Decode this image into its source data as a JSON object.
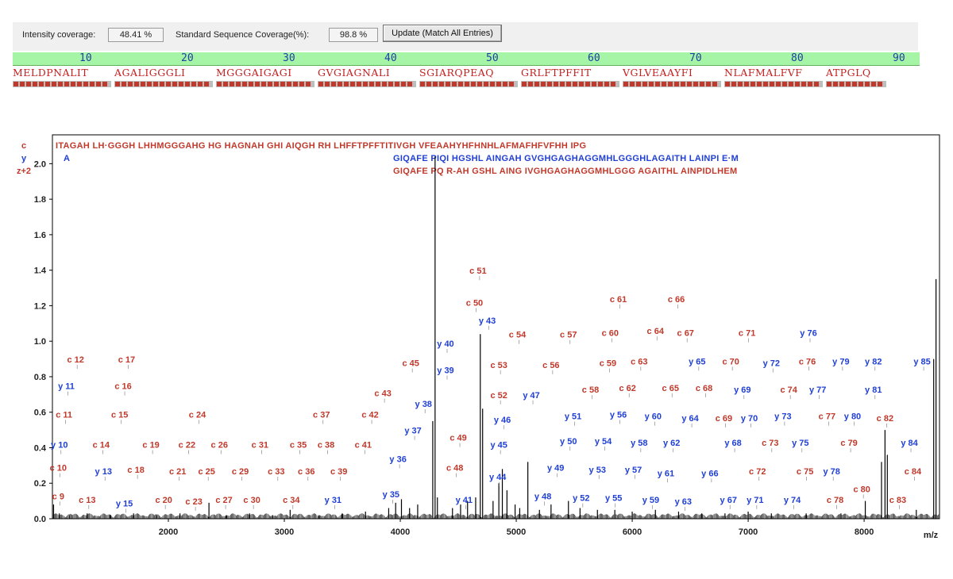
{
  "toolbar": {
    "intensity_label": "Intensity coverage:",
    "intensity_value": "48.41 %",
    "seqcov_label": "Standard Sequence Coverage(%):",
    "seqcov_value": "98.8 %",
    "update_button": "Update (Match All Entries)"
  },
  "sequence": {
    "ruler": [
      "10",
      "20",
      "30",
      "40",
      "50",
      "60",
      "70",
      "80",
      "90"
    ],
    "blocks": [
      "MELDPNALIT",
      "AGALIGGGLI",
      "MGGGAIGAGI",
      "GVGIAGNALI",
      "SGIARQPEAQ",
      "GRLFTPFFIT",
      "VGLVEAAYFI",
      "NLAFMALFVF",
      "ATPGLQ"
    ]
  },
  "colors": {
    "c_ion": "#c0392b",
    "y_ion": "#1f3fd6",
    "spectrum": "#000000",
    "ruler_bg": "#a6f5a6"
  },
  "chart_data": {
    "type": "mass_spectrum",
    "xlabel": "m/z",
    "xlim": [
      1000,
      8650
    ],
    "ylim": [
      0,
      2.1
    ],
    "xticks": [
      "2000",
      "3000",
      "4000",
      "5000",
      "6000",
      "7000",
      "8000"
    ],
    "yticks": [
      "0.0",
      "0.2",
      "0.4",
      "0.6",
      "0.8",
      "1.0",
      "1.2",
      "1.4",
      "1.6",
      "1.8",
      "2.0"
    ],
    "series_labels": [
      "c",
      "y",
      "z+2"
    ],
    "fragment_rows": {
      "c": "ITAGAH LH·GGGH LHHMGGGAHG HG HAGNAH GHI AIQGH RH LHFFTPFFTITIVGH VFEAAHYHFHNHLAFMAFHFVFHH IPG",
      "y": "A",
      "y_line2": "GIQAFE PIQI HGSHL AINGAH GVGHGAGHAGGMHLGGGHLAGAITH LAINPI E·M",
      "z2": "GIQAFE PQ R-AH GSHL AING IVGHGAGHAGGMHLGGG AGAITHL AINPIDLHEM"
    },
    "peaks": [
      [
        1010,
        0.08
      ],
      [
        1060,
        0.03
      ],
      [
        1150,
        0.02
      ],
      [
        1300,
        0.03
      ],
      [
        1500,
        0.02
      ],
      [
        1700,
        0.03
      ],
      [
        1900,
        0.02
      ],
      [
        2100,
        0.03
      ],
      [
        2350,
        0.09
      ],
      [
        2500,
        0.02
      ],
      [
        2700,
        0.03
      ],
      [
        2900,
        0.02
      ],
      [
        3050,
        0.05
      ],
      [
        3300,
        0.02
      ],
      [
        3500,
        0.03
      ],
      [
        3700,
        0.04
      ],
      [
        3900,
        0.06
      ],
      [
        3960,
        0.09
      ],
      [
        4010,
        0.11
      ],
      [
        4080,
        0.06
      ],
      [
        4150,
        0.08
      ],
      [
        4280,
        0.55
      ],
      [
        4300,
        2.04
      ],
      [
        4320,
        0.12
      ],
      [
        4450,
        0.06
      ],
      [
        4520,
        0.08
      ],
      [
        4580,
        0.1
      ],
      [
        4650,
        0.12
      ],
      [
        4690,
        1.04
      ],
      [
        4710,
        0.62
      ],
      [
        4800,
        0.1
      ],
      [
        4850,
        0.2
      ],
      [
        4880,
        0.28
      ],
      [
        4920,
        0.16
      ],
      [
        4990,
        0.08
      ],
      [
        5030,
        0.06
      ],
      [
        5100,
        0.32
      ],
      [
        5200,
        0.05
      ],
      [
        5300,
        0.08
      ],
      [
        5450,
        0.1
      ],
      [
        5550,
        0.06
      ],
      [
        5700,
        0.05
      ],
      [
        5850,
        0.05
      ],
      [
        6000,
        0.04
      ],
      [
        6200,
        0.05
      ],
      [
        6400,
        0.04
      ],
      [
        6600,
        0.03
      ],
      [
        6800,
        0.03
      ],
      [
        7000,
        0.04
      ],
      [
        7200,
        0.03
      ],
      [
        7500,
        0.03
      ],
      [
        7800,
        0.03
      ],
      [
        8010,
        0.1
      ],
      [
        8150,
        0.32
      ],
      [
        8180,
        0.5
      ],
      [
        8200,
        0.36
      ],
      [
        8450,
        0.05
      ],
      [
        8600,
        0.9
      ],
      [
        8620,
        1.35
      ]
    ],
    "annotations": [
      {
        "label": "c 9",
        "type": "c",
        "x": 1050,
        "y": 0.11
      },
      {
        "label": "c 10",
        "type": "c",
        "x": 1050,
        "y": 0.27
      },
      {
        "label": "c 11",
        "type": "c",
        "x": 1100,
        "y": 0.57
      },
      {
        "label": "c 12",
        "type": "c",
        "x": 1200,
        "y": 0.88
      },
      {
        "label": "y 10",
        "type": "y",
        "x": 1060,
        "y": 0.4
      },
      {
        "label": "y 11",
        "type": "y",
        "x": 1120,
        "y": 0.73
      },
      {
        "label": "c 13",
        "type": "c",
        "x": 1300,
        "y": 0.09
      },
      {
        "label": "c 14",
        "type": "c",
        "x": 1420,
        "y": 0.4
      },
      {
        "label": "y 13",
        "type": "y",
        "x": 1440,
        "y": 0.25
      },
      {
        "label": "c 15",
        "type": "c",
        "x": 1580,
        "y": 0.57
      },
      {
        "label": "c 16",
        "type": "c",
        "x": 1610,
        "y": 0.73
      },
      {
        "label": "c 17",
        "type": "c",
        "x": 1640,
        "y": 0.88
      },
      {
        "label": "y 15",
        "type": "y",
        "x": 1620,
        "y": 0.07
      },
      {
        "label": "c 18",
        "type": "c",
        "x": 1720,
        "y": 0.26
      },
      {
        "label": "c 19",
        "type": "c",
        "x": 1850,
        "y": 0.4
      },
      {
        "label": "c 20",
        "type": "c",
        "x": 1960,
        "y": 0.09
      },
      {
        "label": "c 21",
        "type": "c",
        "x": 2080,
        "y": 0.25
      },
      {
        "label": "c 22",
        "type": "c",
        "x": 2160,
        "y": 0.4
      },
      {
        "label": "c 23",
        "type": "c",
        "x": 2220,
        "y": 0.08
      },
      {
        "label": "c 24",
        "type": "c",
        "x": 2250,
        "y": 0.57
      },
      {
        "label": "c 25",
        "type": "c",
        "x": 2330,
        "y": 0.25
      },
      {
        "label": "c 26",
        "type": "c",
        "x": 2440,
        "y": 0.4
      },
      {
        "label": "c 27",
        "type": "c",
        "x": 2480,
        "y": 0.09
      },
      {
        "label": "c 29",
        "type": "c",
        "x": 2620,
        "y": 0.25
      },
      {
        "label": "c 30",
        "type": "c",
        "x": 2720,
        "y": 0.09
      },
      {
        "label": "c 31",
        "type": "c",
        "x": 2790,
        "y": 0.4
      },
      {
        "label": "c 33",
        "type": "c",
        "x": 2930,
        "y": 0.25
      },
      {
        "label": "c 34",
        "type": "c",
        "x": 3060,
        "y": 0.09
      },
      {
        "label": "c 35",
        "type": "c",
        "x": 3120,
        "y": 0.4
      },
      {
        "label": "c 36",
        "type": "c",
        "x": 3190,
        "y": 0.25
      },
      {
        "label": "c 37",
        "type": "c",
        "x": 3320,
        "y": 0.57
      },
      {
        "label": "c 38",
        "type": "c",
        "x": 3360,
        "y": 0.4
      },
      {
        "label": "c 39",
        "type": "c",
        "x": 3470,
        "y": 0.25
      },
      {
        "label": "y 31",
        "type": "y",
        "x": 3420,
        "y": 0.09
      },
      {
        "label": "c 41",
        "type": "c",
        "x": 3680,
        "y": 0.4
      },
      {
        "label": "c 42",
        "type": "c",
        "x": 3740,
        "y": 0.57
      },
      {
        "label": "c 43",
        "type": "c",
        "x": 3850,
        "y": 0.69
      },
      {
        "label": "c 45",
        "type": "c",
        "x": 4090,
        "y": 0.86
      },
      {
        "label": "y 35",
        "type": "y",
        "x": 3920,
        "y": 0.12
      },
      {
        "label": "y 36",
        "type": "y",
        "x": 3980,
        "y": 0.32
      },
      {
        "label": "y 37",
        "type": "y",
        "x": 4110,
        "y": 0.48
      },
      {
        "label": "y 38",
        "type": "y",
        "x": 4200,
        "y": 0.63
      },
      {
        "label": "y 39",
        "type": "y",
        "x": 4390,
        "y": 0.82
      },
      {
        "label": "y 40",
        "type": "y",
        "x": 4390,
        "y": 0.97
      },
      {
        "label": "y 41",
        "type": "y",
        "x": 4550,
        "y": 0.09
      },
      {
        "label": "c 48",
        "type": "c",
        "x": 4470,
        "y": 0.27
      },
      {
        "label": "c 49",
        "type": "c",
        "x": 4500,
        "y": 0.44
      },
      {
        "label": "c 50",
        "type": "c",
        "x": 4640,
        "y": 1.2
      },
      {
        "label": "c 51",
        "type": "c",
        "x": 4670,
        "y": 1.38
      },
      {
        "label": "y 43",
        "type": "y",
        "x": 4750,
        "y": 1.1
      },
      {
        "label": "y 44",
        "type": "y",
        "x": 4840,
        "y": 0.22
      },
      {
        "label": "y 45",
        "type": "y",
        "x": 4850,
        "y": 0.4
      },
      {
        "label": "y 46",
        "type": "y",
        "x": 4880,
        "y": 0.54
      },
      {
        "label": "c 52",
        "type": "c",
        "x": 4850,
        "y": 0.68
      },
      {
        "label": "c 53",
        "type": "c",
        "x": 4850,
        "y": 0.85
      },
      {
        "label": "c 54",
        "type": "c",
        "x": 5010,
        "y": 1.02
      },
      {
        "label": "y 47",
        "type": "y",
        "x": 5130,
        "y": 0.68
      },
      {
        "label": "y 48",
        "type": "y",
        "x": 5230,
        "y": 0.11
      },
      {
        "label": "y 49",
        "type": "y",
        "x": 5340,
        "y": 0.27
      },
      {
        "label": "y 50",
        "type": "y",
        "x": 5450,
        "y": 0.42
      },
      {
        "label": "y 51",
        "type": "y",
        "x": 5490,
        "y": 0.56
      },
      {
        "label": "c 56",
        "type": "c",
        "x": 5300,
        "y": 0.85
      },
      {
        "label": "c 57",
        "type": "c",
        "x": 5450,
        "y": 1.02
      },
      {
        "label": "y 52",
        "type": "y",
        "x": 5560,
        "y": 0.1
      },
      {
        "label": "y 53",
        "type": "y",
        "x": 5700,
        "y": 0.26
      },
      {
        "label": "y 54",
        "type": "y",
        "x": 5750,
        "y": 0.42
      },
      {
        "label": "c 58",
        "type": "c",
        "x": 5640,
        "y": 0.71
      },
      {
        "label": "c 59",
        "type": "c",
        "x": 5790,
        "y": 0.86
      },
      {
        "label": "c 60",
        "type": "c",
        "x": 5810,
        "y": 1.03
      },
      {
        "label": "c 61",
        "type": "c",
        "x": 5880,
        "y": 1.22
      },
      {
        "label": "y 55",
        "type": "y",
        "x": 5840,
        "y": 0.1
      },
      {
        "label": "y 56",
        "type": "y",
        "x": 5880,
        "y": 0.57
      },
      {
        "label": "y 57",
        "type": "y",
        "x": 6010,
        "y": 0.26
      },
      {
        "label": "y 58",
        "type": "y",
        "x": 6060,
        "y": 0.41
      },
      {
        "label": "c 62",
        "type": "c",
        "x": 5960,
        "y": 0.72
      },
      {
        "label": "c 63",
        "type": "c",
        "x": 6060,
        "y": 0.87
      },
      {
        "label": "c 64",
        "type": "c",
        "x": 6200,
        "y": 1.04
      },
      {
        "label": "c 66",
        "type": "c",
        "x": 6380,
        "y": 1.22
      },
      {
        "label": "y 59",
        "type": "y",
        "x": 6160,
        "y": 0.09
      },
      {
        "label": "y 60",
        "type": "y",
        "x": 6180,
        "y": 0.56
      },
      {
        "label": "y 61",
        "type": "y",
        "x": 6290,
        "y": 0.24
      },
      {
        "label": "y 62",
        "type": "y",
        "x": 6340,
        "y": 0.41
      },
      {
        "label": "c 65",
        "type": "c",
        "x": 6330,
        "y": 0.72
      },
      {
        "label": "c 67",
        "type": "c",
        "x": 6460,
        "y": 1.03
      },
      {
        "label": "y 63",
        "type": "y",
        "x": 6440,
        "y": 0.08
      },
      {
        "label": "y 64",
        "type": "y",
        "x": 6500,
        "y": 0.55
      },
      {
        "label": "y 65",
        "type": "y",
        "x": 6560,
        "y": 0.87
      },
      {
        "label": "y 66",
        "type": "y",
        "x": 6670,
        "y": 0.24
      },
      {
        "label": "c 68",
        "type": "c",
        "x": 6620,
        "y": 0.72
      },
      {
        "label": "c 69",
        "type": "c",
        "x": 6790,
        "y": 0.55
      },
      {
        "label": "c 70",
        "type": "c",
        "x": 6850,
        "y": 0.87
      },
      {
        "label": "y 67",
        "type": "y",
        "x": 6830,
        "y": 0.09
      },
      {
        "label": "y 68",
        "type": "y",
        "x": 6870,
        "y": 0.41
      },
      {
        "label": "y 69",
        "type": "y",
        "x": 6950,
        "y": 0.71
      },
      {
        "label": "y 70",
        "type": "y",
        "x": 7010,
        "y": 0.55
      },
      {
        "label": "c 71",
        "type": "c",
        "x": 6990,
        "y": 1.03
      },
      {
        "label": "y 71",
        "type": "y",
        "x": 7060,
        "y": 0.09
      },
      {
        "label": "c 72",
        "type": "c",
        "x": 7080,
        "y": 0.25
      },
      {
        "label": "c 73",
        "type": "c",
        "x": 7190,
        "y": 0.41
      },
      {
        "label": "y 72",
        "type": "y",
        "x": 7200,
        "y": 0.86
      },
      {
        "label": "y 73",
        "type": "y",
        "x": 7300,
        "y": 0.56
      },
      {
        "label": "c 74",
        "type": "c",
        "x": 7350,
        "y": 0.71
      },
      {
        "label": "y 74",
        "type": "y",
        "x": 7380,
        "y": 0.09
      },
      {
        "label": "y 75",
        "type": "y",
        "x": 7450,
        "y": 0.41
      },
      {
        "label": "c 75",
        "type": "c",
        "x": 7490,
        "y": 0.25
      },
      {
        "label": "c 76",
        "type": "c",
        "x": 7510,
        "y": 0.87
      },
      {
        "label": "y 76",
        "type": "y",
        "x": 7520,
        "y": 1.03
      },
      {
        "label": "y 77",
        "type": "y",
        "x": 7600,
        "y": 0.71
      },
      {
        "label": "c 77",
        "type": "c",
        "x": 7680,
        "y": 0.56
      },
      {
        "label": "y 78",
        "type": "y",
        "x": 7720,
        "y": 0.25
      },
      {
        "label": "c 78",
        "type": "c",
        "x": 7750,
        "y": 0.09
      },
      {
        "label": "y 79",
        "type": "y",
        "x": 7800,
        "y": 0.87
      },
      {
        "label": "c 79",
        "type": "c",
        "x": 7870,
        "y": 0.41
      },
      {
        "label": "y 80",
        "type": "y",
        "x": 7900,
        "y": 0.56
      },
      {
        "label": "c 80",
        "type": "c",
        "x": 7980,
        "y": 0.15
      },
      {
        "label": "y 81",
        "type": "y",
        "x": 8080,
        "y": 0.71
      },
      {
        "label": "y 82",
        "type": "y",
        "x": 8080,
        "y": 0.87
      },
      {
        "label": "c 82",
        "type": "c",
        "x": 8180,
        "y": 0.55
      },
      {
        "label": "c 83",
        "type": "c",
        "x": 8290,
        "y": 0.09
      },
      {
        "label": "y 84",
        "type": "y",
        "x": 8390,
        "y": 0.41
      },
      {
        "label": "c 84",
        "type": "c",
        "x": 8420,
        "y": 0.25
      },
      {
        "label": "y 85",
        "type": "y",
        "x": 8500,
        "y": 0.87
      }
    ]
  }
}
